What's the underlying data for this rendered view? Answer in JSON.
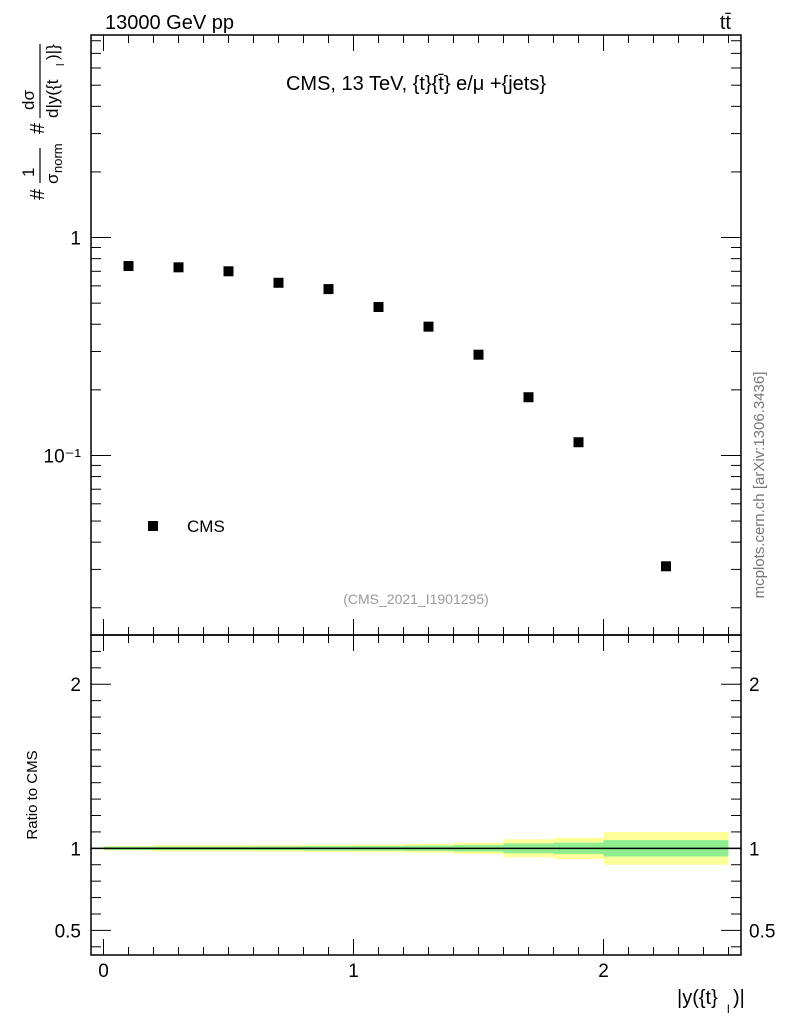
{
  "header": {
    "left": "13000 GeV pp",
    "right": "tt̄"
  },
  "chart_data": [
    {
      "type": "scatter",
      "panel": "main",
      "title": "CMS, 13 TeV, {t}{t̄} e/μ +{jets}",
      "ylabel": "#1/σ_norm #dσ/d|y({t}_l)|}",
      "ylabel_parts": {
        "hash1": "#",
        "one": "1",
        "sigma": "σ",
        "norm": "norm",
        "hash2": "#",
        "dsigma": "dσ",
        "denom": "d|y({t",
        "denom_sub": "l",
        "denom_end": ")|}"
      },
      "yscale": "log",
      "ylim": [
        0.015,
        8.5
      ],
      "xlim": [
        -0.05,
        2.55
      ],
      "yticks_major": [
        {
          "value": 1,
          "label": "1"
        },
        {
          "value": 0.1,
          "label": "10⁻¹"
        }
      ],
      "series": [
        {
          "name": "CMS",
          "marker": "square",
          "x": [
            0.1,
            0.3,
            0.5,
            0.7,
            0.9,
            1.1,
            1.3,
            1.5,
            1.7,
            1.9,
            2.25
          ],
          "y": [
            0.74,
            0.73,
            0.7,
            0.62,
            0.58,
            0.48,
            0.39,
            0.29,
            0.185,
            0.115,
            0.031
          ]
        }
      ],
      "legend": {
        "entries": [
          "CMS"
        ],
        "position": "bottom-left"
      },
      "analysis_id": "(CMS_2021_I1901295)"
    },
    {
      "type": "area",
      "panel": "ratio",
      "ylabel": "Ratio to CMS",
      "xlabel": "|y({t}_l)|",
      "xlabel_parts": {
        "main": "|y({t}",
        "sub": "l",
        "end": ")|"
      },
      "xlim": [
        -0.05,
        2.55
      ],
      "ylim": [
        0.35,
        2.3
      ],
      "xticks": [
        {
          "value": 0,
          "label": "0"
        },
        {
          "value": 1,
          "label": "1"
        },
        {
          "value": 2,
          "label": "2"
        }
      ],
      "yticks": [
        {
          "value": 0.5,
          "label": "0.5"
        },
        {
          "value": 1,
          "label": "1"
        },
        {
          "value": 2,
          "label": "2"
        }
      ],
      "reference_line": 1,
      "bins": [
        {
          "lo": 0.0,
          "hi": 0.2,
          "stat": 0.01,
          "total": 0.014
        },
        {
          "lo": 0.2,
          "hi": 0.4,
          "stat": 0.011,
          "total": 0.02
        },
        {
          "lo": 0.4,
          "hi": 0.6,
          "stat": 0.011,
          "total": 0.02
        },
        {
          "lo": 0.6,
          "hi": 0.8,
          "stat": 0.012,
          "total": 0.021
        },
        {
          "lo": 0.8,
          "hi": 1.0,
          "stat": 0.013,
          "total": 0.022
        },
        {
          "lo": 1.0,
          "hi": 1.2,
          "stat": 0.014,
          "total": 0.024
        },
        {
          "lo": 1.2,
          "hi": 1.4,
          "stat": 0.016,
          "total": 0.027
        },
        {
          "lo": 1.4,
          "hi": 1.6,
          "stat": 0.02,
          "total": 0.035
        },
        {
          "lo": 1.6,
          "hi": 1.8,
          "stat": 0.03,
          "total": 0.055
        },
        {
          "lo": 1.8,
          "hi": 2.0,
          "stat": 0.035,
          "total": 0.065
        },
        {
          "lo": 2.0,
          "hi": 2.5,
          "stat": 0.05,
          "total": 0.1
        }
      ],
      "colors": {
        "stat": "#90ee90",
        "total": "#ffff99"
      }
    }
  ],
  "watermark": "mcplots.cern.ch [arXiv:1306.3436]"
}
